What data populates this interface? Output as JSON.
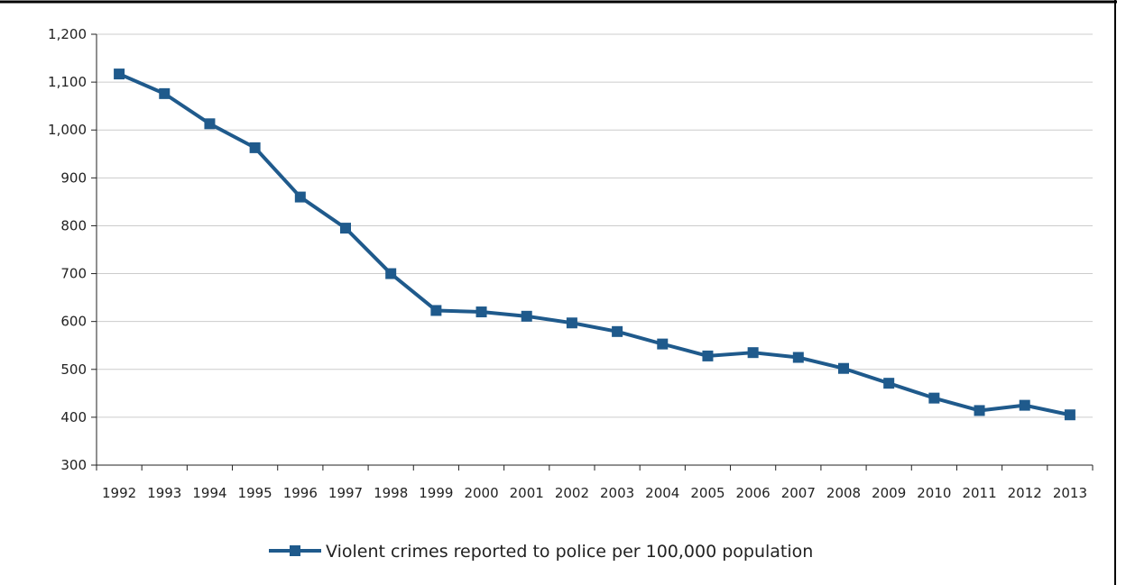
{
  "colors": {
    "series": "#1f5a8c",
    "grid": "#cccccc",
    "axis": "#222222",
    "border": "#000000",
    "background": "#ffffff"
  },
  "chart_data": {
    "type": "line",
    "title": "",
    "xlabel": "",
    "ylabel": "",
    "x": [
      "1992",
      "1993",
      "1994",
      "1995",
      "1996",
      "1997",
      "1998",
      "1999",
      "2000",
      "2001",
      "2002",
      "2003",
      "2004",
      "2005",
      "2006",
      "2007",
      "2008",
      "2009",
      "2010",
      "2011",
      "2012",
      "2013"
    ],
    "series": [
      {
        "name": "Violent crimes reported to police per 100,000 population",
        "marker": "square",
        "values": [
          1117,
          1076,
          1013,
          963,
          860,
          795,
          700,
          623,
          620,
          611,
          597,
          579,
          553,
          528,
          535,
          525,
          502,
          471,
          440,
          414,
          425,
          405
        ]
      }
    ],
    "ylim": [
      300,
      1200
    ],
    "yticks": [
      300,
      400,
      500,
      600,
      700,
      800,
      900,
      1000,
      1100,
      1200
    ],
    "ytick_labels": [
      "300",
      "400",
      "500",
      "600",
      "700",
      "800",
      "900",
      "1,000",
      "1,100",
      "1,200"
    ],
    "grid": true,
    "legend_position": "bottom-center"
  }
}
